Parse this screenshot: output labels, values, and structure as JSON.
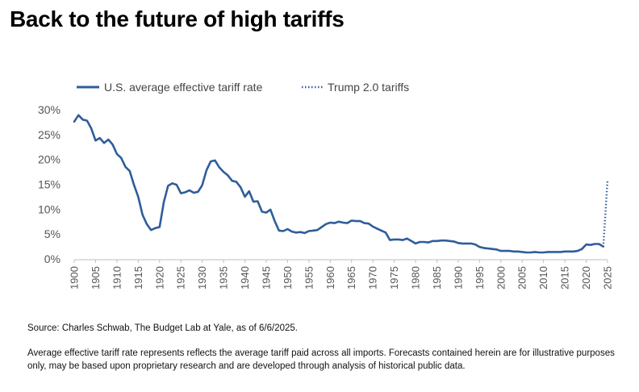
{
  "page": {
    "title": "Back to the future of high tariffs",
    "source": "Source: Charles Schwab, The Budget Lab at Yale, as of 6/6/2025.",
    "note": "Average effective tariff rate represents reflects the average tariff paid across all imports. Forecasts contained herein are for illustrative purposes only, may be based upon proprietary research and are developed through analysis of historical public data."
  },
  "colors": {
    "series": "#2f5d9b",
    "axis_text": "#555555",
    "axis_line": "#bfbfbf"
  },
  "chart_data": {
    "type": "line",
    "title": "",
    "xlabel": "",
    "ylabel": "",
    "xlim": [
      1900,
      2025
    ],
    "ylim": [
      0,
      30
    ],
    "x_ticks": [
      1900,
      1905,
      1910,
      1915,
      1920,
      1925,
      1930,
      1935,
      1940,
      1945,
      1950,
      1955,
      1960,
      1965,
      1970,
      1975,
      1980,
      1985,
      1990,
      1995,
      2000,
      2005,
      2010,
      2015,
      2020,
      2025
    ],
    "y_ticks": [
      {
        "value": 0,
        "label": "0%"
      },
      {
        "value": 5,
        "label": "5%"
      },
      {
        "value": 10,
        "label": "10%"
      },
      {
        "value": 15,
        "label": "15%"
      },
      {
        "value": 20,
        "label": "20%"
      },
      {
        "value": 25,
        "label": "25%"
      },
      {
        "value": 30,
        "label": "30%"
      }
    ],
    "grid": false,
    "legend_position": "top-left",
    "series": [
      {
        "name": "U.S. average effective tariff rate",
        "style": "solid",
        "x": [
          1900,
          1901,
          1902,
          1903,
          1904,
          1905,
          1906,
          1907,
          1908,
          1909,
          1910,
          1911,
          1912,
          1913,
          1914,
          1915,
          1916,
          1917,
          1918,
          1919,
          1920,
          1921,
          1922,
          1923,
          1924,
          1925,
          1926,
          1927,
          1928,
          1929,
          1930,
          1931,
          1932,
          1933,
          1934,
          1935,
          1936,
          1937,
          1938,
          1939,
          1940,
          1941,
          1942,
          1943,
          1944,
          1945,
          1946,
          1947,
          1948,
          1949,
          1950,
          1951,
          1952,
          1953,
          1954,
          1955,
          1956,
          1957,
          1958,
          1959,
          1960,
          1961,
          1962,
          1963,
          1964,
          1965,
          1966,
          1967,
          1968,
          1969,
          1970,
          1971,
          1972,
          1973,
          1974,
          1975,
          1976,
          1977,
          1978,
          1979,
          1980,
          1981,
          1982,
          1983,
          1984,
          1985,
          1986,
          1987,
          1988,
          1989,
          1990,
          1991,
          1992,
          1993,
          1994,
          1995,
          1996,
          1997,
          1998,
          1999,
          2000,
          2001,
          2002,
          2003,
          2004,
          2005,
          2006,
          2007,
          2008,
          2009,
          2010,
          2011,
          2012,
          2013,
          2014,
          2015,
          2016,
          2017,
          2018,
          2019,
          2020,
          2021,
          2022,
          2023,
          2024
        ],
        "values": [
          27.6,
          28.9,
          28.0,
          27.8,
          26.2,
          23.8,
          24.3,
          23.3,
          24.0,
          23.0,
          21.1,
          20.3,
          18.5,
          17.7,
          14.9,
          12.5,
          8.9,
          7.0,
          5.8,
          6.2,
          6.4,
          11.4,
          14.7,
          15.2,
          14.9,
          13.2,
          13.4,
          13.8,
          13.3,
          13.5,
          14.8,
          17.8,
          19.6,
          19.8,
          18.4,
          17.5,
          16.8,
          15.7,
          15.5,
          14.4,
          12.5,
          13.6,
          11.5,
          11.6,
          9.5,
          9.3,
          9.9,
          7.6,
          5.7,
          5.6,
          6.0,
          5.5,
          5.3,
          5.4,
          5.2,
          5.6,
          5.7,
          5.8,
          6.4,
          7.0,
          7.3,
          7.2,
          7.5,
          7.3,
          7.2,
          7.7,
          7.6,
          7.6,
          7.2,
          7.1,
          6.5,
          6.1,
          5.7,
          5.3,
          3.8,
          3.9,
          3.9,
          3.8,
          4.1,
          3.6,
          3.1,
          3.4,
          3.4,
          3.3,
          3.6,
          3.6,
          3.7,
          3.7,
          3.6,
          3.5,
          3.2,
          3.1,
          3.1,
          3.1,
          2.9,
          2.4,
          2.2,
          2.1,
          2.0,
          1.9,
          1.6,
          1.6,
          1.6,
          1.5,
          1.5,
          1.4,
          1.3,
          1.3,
          1.4,
          1.3,
          1.3,
          1.4,
          1.4,
          1.4,
          1.4,
          1.5,
          1.5,
          1.5,
          1.6,
          2.0,
          2.9,
          2.8,
          3.0,
          3.0,
          2.5
        ]
      },
      {
        "name": "Trump 2.0 tariffs",
        "style": "dotted",
        "x": [
          2024,
          2025
        ],
        "values": [
          2.4,
          15.8
        ]
      }
    ]
  }
}
